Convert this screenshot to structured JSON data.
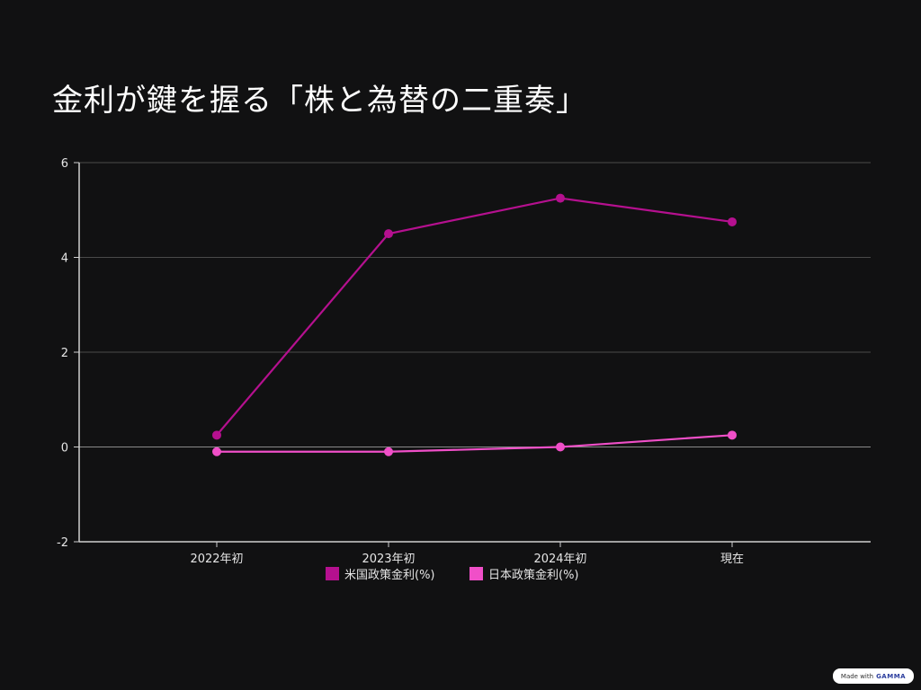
{
  "page": {
    "title": "金利が鍵を握る「株と為替の二重奏」"
  },
  "badge": {
    "prefix": "Made with",
    "brand": "GAMMA"
  },
  "chart_data": {
    "type": "line",
    "categories": [
      "2022年初",
      "2023年初",
      "2024年初",
      "現在"
    ],
    "series": [
      {
        "name": "米国政策金利(%)",
        "values": [
          0.25,
          4.5,
          5.25,
          4.75
        ],
        "color": "#b5108f"
      },
      {
        "name": "日本政策金利(%)",
        "values": [
          -0.1,
          -0.1,
          0.0,
          0.25
        ],
        "color": "#f04fc8"
      }
    ],
    "ylim": [
      -2,
      6
    ],
    "yticks": [
      -2,
      0,
      2,
      4,
      6
    ],
    "grid": true,
    "legend": "bottom"
  }
}
